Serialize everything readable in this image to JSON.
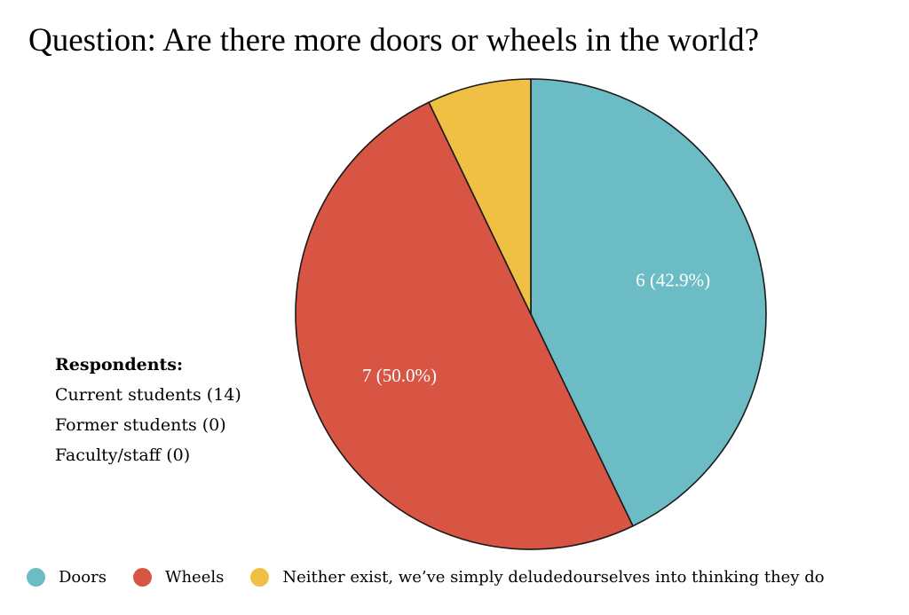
{
  "chart_data": {
    "type": "pie",
    "title": "Question: Are there more doors or wheels in the world?",
    "slices": [
      {
        "name": "Doors",
        "value": 6,
        "label": "6 (42.9%)",
        "color": "#6bbcc5"
      },
      {
        "name": "Wheels",
        "value": 7,
        "label": "7 (50.0%)",
        "color": "#d85443"
      },
      {
        "name": "Neither exist, we’ve simply deludedourselves into thinking they do",
        "value": 1,
        "label": "",
        "color": "#f0c045"
      }
    ],
    "legend_position": "bottom"
  },
  "respondents": {
    "heading": "Respondents:",
    "lines": [
      "Current students (14)",
      "Former students (0)",
      "Faculty/staff (0)"
    ]
  }
}
